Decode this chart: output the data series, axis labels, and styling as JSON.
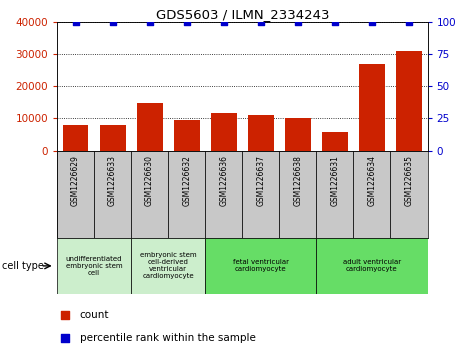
{
  "title": "GDS5603 / ILMN_2334243",
  "samples": [
    "GSM1226629",
    "GSM1226633",
    "GSM1226630",
    "GSM1226632",
    "GSM1226636",
    "GSM1226637",
    "GSM1226638",
    "GSM1226631",
    "GSM1226634",
    "GSM1226635"
  ],
  "counts": [
    8000,
    8000,
    14800,
    9500,
    11800,
    11200,
    10200,
    5800,
    27000,
    31000
  ],
  "percentiles": [
    100,
    100,
    100,
    100,
    100,
    100,
    100,
    100,
    100,
    100
  ],
  "bar_color": "#cc2200",
  "dot_color": "#0000cc",
  "ylim_left": [
    0,
    40000
  ],
  "ylim_right": [
    0,
    100
  ],
  "yticks_left": [
    0,
    10000,
    20000,
    30000,
    40000
  ],
  "yticks_right": [
    0,
    25,
    50,
    75,
    100
  ],
  "cell_types": [
    {
      "label": "undifferentiated\nembryonic stem\ncell",
      "start": 0,
      "end": 2,
      "color": "#cceecc"
    },
    {
      "label": "embryonic stem\ncell-derived\nventricular\ncardiomyocyte",
      "start": 2,
      "end": 4,
      "color": "#cceecc"
    },
    {
      "label": "fetal ventricular\ncardiomyocyte",
      "start": 4,
      "end": 7,
      "color": "#66dd66"
    },
    {
      "label": "adult ventricular\ncardiomyocyte",
      "start": 7,
      "end": 10,
      "color": "#66dd66"
    }
  ],
  "cell_type_label": "cell type",
  "legend_count_label": "count",
  "legend_percentile_label": "percentile rank within the sample",
  "background_color": "#ffffff",
  "grid_color": "#000000",
  "tick_color_left": "#cc2200",
  "tick_color_right": "#0000cc",
  "sample_box_color": "#c8c8c8"
}
